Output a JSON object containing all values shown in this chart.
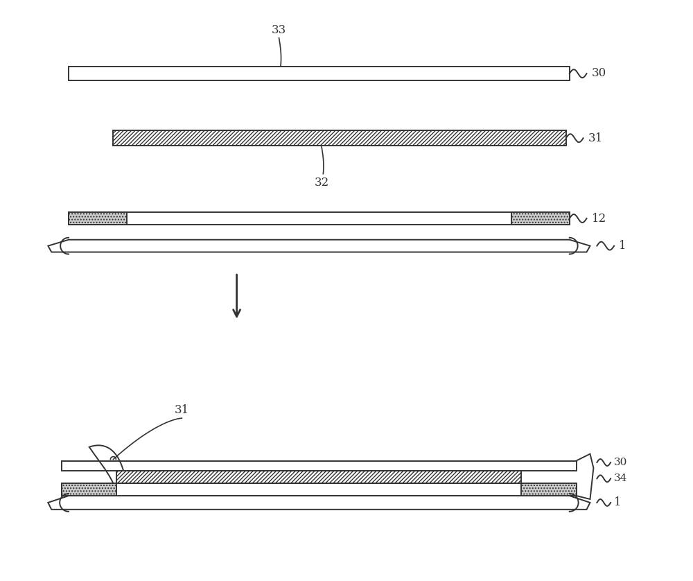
{
  "bg_color": "#ffffff",
  "line_color": "#333333",
  "fig_width": 10.0,
  "fig_height": 8.38,
  "dpi": 100,
  "label_fontsize": 12,
  "lw": 1.4
}
